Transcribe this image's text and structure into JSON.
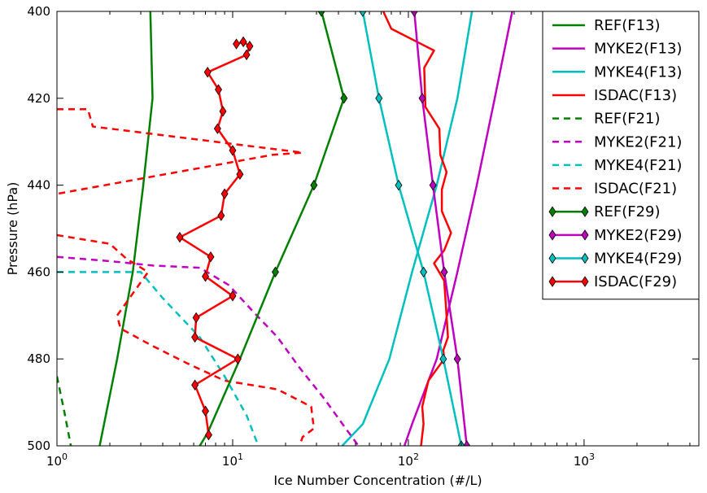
{
  "chart_data": {
    "type": "line",
    "xlabel": "Ice Number Concentration (#/L)",
    "ylabel": "Pressure (hPa)",
    "xscale": "log",
    "xlim": [
      1,
      4500
    ],
    "ylim": [
      400,
      500
    ],
    "y_inverted": true,
    "grid": false,
    "legend_position": "top-right",
    "x_ticks": [
      {
        "value": 1,
        "base": "10",
        "exp": "0"
      },
      {
        "value": 10,
        "base": "10",
        "exp": "1"
      },
      {
        "value": 100,
        "base": "10",
        "exp": "2"
      },
      {
        "value": 1000,
        "base": "10",
        "exp": "3"
      }
    ],
    "y_ticks": [
      400,
      420,
      440,
      460,
      480,
      500
    ],
    "series": [
      {
        "name": "REF(F13)",
        "color": "#008000",
        "style": "solid",
        "marker": false,
        "points": [
          [
            3.4,
            400
          ],
          [
            3.5,
            420
          ],
          [
            3.1,
            440
          ],
          [
            2.7,
            460
          ],
          [
            2.2,
            480
          ],
          [
            1.75,
            500
          ]
        ]
      },
      {
        "name": "MYKE2(F13)",
        "color": "#bf00bf",
        "style": "solid",
        "marker": false,
        "points": [
          [
            390,
            400
          ],
          [
            310,
            420
          ],
          [
            245,
            440
          ],
          [
            190,
            460
          ],
          [
            145,
            480
          ],
          [
            105,
            495
          ],
          [
            95,
            500
          ]
        ]
      },
      {
        "name": "MYKE4(F13)",
        "color": "#00bfbf",
        "style": "solid",
        "marker": false,
        "points": [
          [
            230,
            400
          ],
          [
            190,
            420
          ],
          [
            145,
            440
          ],
          [
            105,
            460
          ],
          [
            78,
            480
          ],
          [
            55,
            495
          ],
          [
            42,
            500
          ]
        ]
      },
      {
        "name": "ISDAC(F13)",
        "color": "#ff0000",
        "style": "solid",
        "marker": false,
        "points": [
          [
            72,
            400
          ],
          [
            80,
            404
          ],
          [
            140,
            409
          ],
          [
            123,
            413
          ],
          [
            125,
            422
          ],
          [
            150,
            427
          ],
          [
            152,
            433
          ],
          [
            165,
            437
          ],
          [
            155,
            441
          ],
          [
            155,
            446
          ],
          [
            175,
            451
          ],
          [
            160,
            455
          ],
          [
            140,
            458
          ],
          [
            160,
            462
          ],
          [
            163,
            467
          ],
          [
            168,
            475
          ],
          [
            158,
            478
          ],
          [
            160,
            480
          ],
          [
            130,
            485
          ],
          [
            120,
            491
          ],
          [
            122,
            495
          ],
          [
            118,
            500
          ]
        ]
      },
      {
        "name": "REF(F21)",
        "color": "#008000",
        "style": "dashed",
        "marker": false,
        "points": [
          [
            1.0,
            484
          ],
          [
            1.1,
            492
          ],
          [
            1.2,
            500
          ]
        ]
      },
      {
        "name": "MYKE2(F21)",
        "color": "#bf00bf",
        "style": "dashed",
        "marker": false,
        "points": [
          [
            1.0,
            456.5
          ],
          [
            2.0,
            457.5
          ],
          [
            3.5,
            458.5
          ],
          [
            6.5,
            459
          ],
          [
            9.5,
            463
          ],
          [
            13,
            469
          ],
          [
            18,
            475
          ],
          [
            24,
            482
          ],
          [
            33,
            489
          ],
          [
            44,
            496
          ],
          [
            52,
            500
          ]
        ]
      },
      {
        "name": "MYKE4(F21)",
        "color": "#00bfbf",
        "style": "dashed",
        "marker": false,
        "points": [
          [
            1.0,
            460
          ],
          [
            3.0,
            460
          ],
          [
            4.0,
            466
          ],
          [
            6.5,
            475
          ],
          [
            9,
            484
          ],
          [
            12,
            493
          ],
          [
            14,
            500
          ]
        ]
      },
      {
        "name": "ISDAC(F21)",
        "color": "#ff0000",
        "style": "dashed",
        "marker": false,
        "points": [
          [
            1.0,
            422.5
          ],
          [
            1.5,
            422.5
          ],
          [
            1.6,
            426.5
          ],
          [
            25,
            432.5
          ],
          [
            17,
            433
          ],
          [
            1.0,
            442
          ],
          null,
          [
            1.0,
            451.5
          ],
          [
            2.0,
            453.5
          ],
          [
            2.5,
            457
          ],
          [
            3.3,
            460
          ],
          [
            2.2,
            470
          ],
          [
            2.3,
            473
          ],
          [
            3.5,
            477
          ],
          [
            5.5,
            481
          ],
          [
            9,
            485
          ],
          [
            18,
            487
          ],
          [
            28,
            491
          ],
          [
            29,
            496
          ],
          [
            25,
            498
          ],
          [
            24,
            500
          ]
        ]
      },
      {
        "name": "REF(F29)",
        "color": "#008000",
        "style": "solid",
        "marker": true,
        "points": [
          [
            32,
            400
          ],
          [
            43,
            420
          ],
          [
            29,
            440
          ],
          [
            17.5,
            460
          ],
          [
            11,
            480
          ],
          [
            7.2,
            497
          ],
          [
            6.5,
            500
          ]
        ],
        "marker_points": [
          [
            32,
            400
          ],
          [
            43,
            420
          ],
          [
            29,
            440
          ],
          [
            17.5,
            460
          ]
        ]
      },
      {
        "name": "MYKE2(F29)",
        "color": "#bf00bf",
        "style": "solid",
        "marker": true,
        "points": [
          [
            108,
            400
          ],
          [
            120,
            420
          ],
          [
            138,
            440
          ],
          [
            160,
            460
          ],
          [
            190,
            480
          ],
          [
            215,
            500
          ]
        ],
        "marker_points": [
          [
            108,
            400
          ],
          [
            120,
            420
          ],
          [
            138,
            440
          ],
          [
            160,
            460
          ],
          [
            190,
            480
          ],
          [
            215,
            500
          ]
        ]
      },
      {
        "name": "MYKE4(F29)",
        "color": "#00bfbf",
        "style": "solid",
        "marker": true,
        "points": [
          [
            55,
            400
          ],
          [
            68,
            420
          ],
          [
            88,
            440
          ],
          [
            122,
            460
          ],
          [
            158,
            480
          ],
          [
            200,
            500
          ]
        ],
        "marker_points": [
          [
            55,
            400
          ],
          [
            68,
            420
          ],
          [
            88,
            440
          ],
          [
            122,
            460
          ],
          [
            158,
            480
          ],
          [
            200,
            500
          ]
        ]
      },
      {
        "name": "ISDAC(F29)",
        "color": "#ff0000",
        "style": "solid",
        "marker": true,
        "points": [
          [
            10.5,
            407.5
          ],
          [
            11.5,
            407
          ],
          [
            12.5,
            408
          ],
          [
            12,
            410
          ],
          [
            7.2,
            414
          ],
          [
            8.3,
            418
          ],
          [
            8.8,
            423
          ],
          [
            8.2,
            427
          ],
          [
            10,
            432
          ],
          [
            11,
            437.5
          ],
          [
            9,
            442
          ],
          [
            8.6,
            447
          ],
          [
            5,
            452
          ],
          [
            7.5,
            456.5
          ],
          [
            7,
            461
          ],
          [
            10,
            465.5
          ],
          [
            6.2,
            470.5
          ],
          [
            6.1,
            475
          ],
          [
            10.7,
            480
          ],
          [
            6.1,
            486
          ],
          [
            7,
            492
          ],
          [
            7.3,
            497.5
          ]
        ],
        "marker_points": [
          [
            10.5,
            407.5
          ],
          [
            11.5,
            407
          ],
          [
            12.5,
            408
          ],
          [
            12,
            410
          ],
          [
            7.2,
            414
          ],
          [
            8.3,
            418
          ],
          [
            8.8,
            423
          ],
          [
            8.2,
            427
          ],
          [
            10,
            432
          ],
          [
            11,
            437.5
          ],
          [
            9,
            442
          ],
          [
            8.6,
            447
          ],
          [
            5,
            452
          ],
          [
            7.5,
            456.5
          ],
          [
            7,
            461
          ],
          [
            10,
            465.5
          ],
          [
            6.2,
            470.5
          ],
          [
            6.1,
            475
          ],
          [
            10.7,
            480
          ],
          [
            6.1,
            486
          ],
          [
            7,
            492
          ],
          [
            7.3,
            497.5
          ]
        ]
      }
    ]
  }
}
